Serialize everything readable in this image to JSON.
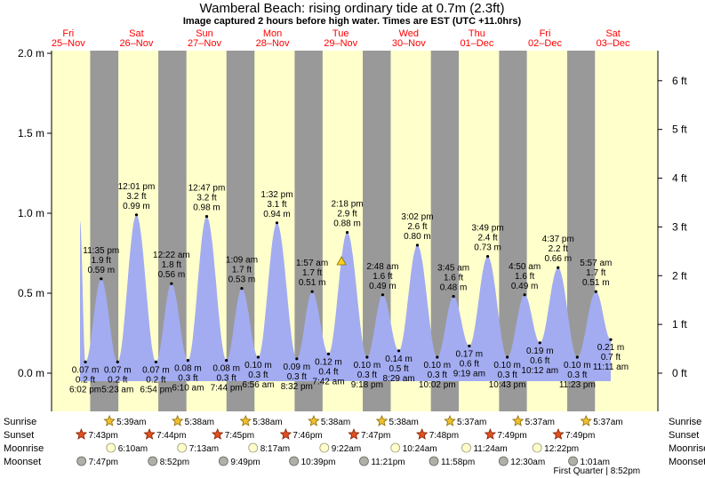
{
  "title": "Wamberal Beach: rising  ordinary tide at 0.7m (2.3ft)",
  "subtitle": "Image captured 2 hours before high water. Times are EST (UTC +11.0hrs)",
  "colors": {
    "day_fill": "#ffffcc",
    "night_fill": "#999999",
    "tide_fill": "#a3acf0",
    "day_label": "#ff0000",
    "sun": "#f0c030",
    "sunset_star": "#e05020",
    "moon": "#ffffcc",
    "moonset": "#b0b0a8",
    "current_marker": "#ffd020"
  },
  "chart_data": {
    "type": "area",
    "title": "Wamberal Beach: rising  ordinary tide at 0.7m (2.3ft)",
    "ylabel": "",
    "ylim": [
      -0.09,
      2.0
    ],
    "left_axis_ticks": [
      "0.0 m",
      "0.5 m",
      "1.0 m",
      "1.5 m",
      "2.0 m"
    ],
    "left_axis_values": [
      0.0,
      0.5,
      1.0,
      1.5,
      2.0
    ],
    "right_axis_ticks": [
      "0 ft",
      "1 ft",
      "2 ft",
      "3 ft",
      "4 ft",
      "5 ft",
      "6 ft"
    ],
    "right_axis_values": [
      0,
      1,
      2,
      3,
      4,
      5,
      6
    ],
    "days": [
      {
        "dow": "Fri",
        "date": "25–Nov"
      },
      {
        "dow": "Sat",
        "date": "26–Nov"
      },
      {
        "dow": "Sun",
        "date": "27–Nov"
      },
      {
        "dow": "Mon",
        "date": "28–Nov"
      },
      {
        "dow": "Tue",
        "date": "29–Nov"
      },
      {
        "dow": "Wed",
        "date": "30–Nov"
      },
      {
        "dow": "Thu",
        "date": "01–Dec"
      },
      {
        "dow": "Fri",
        "date": "02–Dec"
      },
      {
        "dow": "Sat",
        "date": "03–Dec"
      }
    ],
    "tides": [
      {
        "kind": "low",
        "time": "6:02 pm",
        "ft": "0.2 ft",
        "m": "0.07 m",
        "value": 0.07,
        "day": 0,
        "hour": 18.03
      },
      {
        "kind": "high",
        "time": "11:35 pm",
        "ft": "1.9 ft",
        "m": "0.59 m",
        "value": 0.59,
        "day": 0,
        "hour": 23.58
      },
      {
        "kind": "low",
        "time": "5:23 am",
        "ft": "0.2 ft",
        "m": "0.07 m",
        "value": 0.07,
        "day": 1,
        "hour": 5.38
      },
      {
        "kind": "high",
        "time": "12:01 pm",
        "ft": "3.2 ft",
        "m": "0.99 m",
        "value": 0.99,
        "day": 1,
        "hour": 12.02
      },
      {
        "kind": "low",
        "time": "6:54 pm",
        "ft": "0.2 ft",
        "m": "0.07 m",
        "value": 0.07,
        "day": 1,
        "hour": 18.9
      },
      {
        "kind": "high",
        "time": "12:22 am",
        "ft": "1.8 ft",
        "m": "0.56 m",
        "value": 0.56,
        "day": 2,
        "hour": 0.37
      },
      {
        "kind": "low",
        "time": "6:10 am",
        "ft": "0.3 ft",
        "m": "0.08 m",
        "value": 0.08,
        "day": 2,
        "hour": 6.17
      },
      {
        "kind": "high",
        "time": "12:47 pm",
        "ft": "3.2 ft",
        "m": "0.98 m",
        "value": 0.98,
        "day": 2,
        "hour": 12.78
      },
      {
        "kind": "low",
        "time": "7:44 pm",
        "ft": "0.3 ft",
        "m": "0.08 m",
        "value": 0.08,
        "day": 2,
        "hour": 19.73
      },
      {
        "kind": "high",
        "time": "1:09 am",
        "ft": "1.7 ft",
        "m": "0.53 m",
        "value": 0.53,
        "day": 3,
        "hour": 1.15
      },
      {
        "kind": "low",
        "time": "6:56 am",
        "ft": "0.3 ft",
        "m": "0.10 m",
        "value": 0.1,
        "day": 3,
        "hour": 6.93
      },
      {
        "kind": "high",
        "time": "1:32 pm",
        "ft": "3.1 ft",
        "m": "0.94 m",
        "value": 0.94,
        "day": 3,
        "hour": 13.53
      },
      {
        "kind": "low",
        "time": "8:32 pm",
        "ft": "0.3 ft",
        "m": "0.09 m",
        "value": 0.09,
        "day": 3,
        "hour": 20.53
      },
      {
        "kind": "high",
        "time": "1:57 am",
        "ft": "1.7 ft",
        "m": "0.51 m",
        "value": 0.51,
        "day": 4,
        "hour": 1.95
      },
      {
        "kind": "low",
        "time": "7:42 am",
        "ft": "0.4 ft",
        "m": "0.12 m",
        "value": 0.12,
        "day": 4,
        "hour": 7.7
      },
      {
        "kind": "high",
        "time": "2:18 pm",
        "ft": "2.9 ft",
        "m": "0.88 m",
        "value": 0.88,
        "day": 4,
        "hour": 14.3
      },
      {
        "kind": "low",
        "time": "9:18 pm",
        "ft": "0.3 ft",
        "m": "0.10 m",
        "value": 0.1,
        "day": 4,
        "hour": 21.3
      },
      {
        "kind": "high",
        "time": "2:48 am",
        "ft": "1.6 ft",
        "m": "0.49 m",
        "value": 0.49,
        "day": 5,
        "hour": 2.8
      },
      {
        "kind": "low",
        "time": "8:29 am",
        "ft": "0.5 ft",
        "m": "0.14 m",
        "value": 0.14,
        "day": 5,
        "hour": 8.48
      },
      {
        "kind": "high",
        "time": "3:02 pm",
        "ft": "2.6 ft",
        "m": "0.80 m",
        "value": 0.8,
        "day": 5,
        "hour": 15.03
      },
      {
        "kind": "low",
        "time": "10:02 pm",
        "ft": "0.3 ft",
        "m": "0.10 m",
        "value": 0.1,
        "day": 5,
        "hour": 22.03
      },
      {
        "kind": "high",
        "time": "3:45 am",
        "ft": "1.6 ft",
        "m": "0.48 m",
        "value": 0.48,
        "day": 6,
        "hour": 3.75
      },
      {
        "kind": "low",
        "time": "9:19 am",
        "ft": "0.6 ft",
        "m": "0.17 m",
        "value": 0.17,
        "day": 6,
        "hour": 9.32
      },
      {
        "kind": "high",
        "time": "3:49 pm",
        "ft": "2.4 ft",
        "m": "0.73 m",
        "value": 0.73,
        "day": 6,
        "hour": 15.82
      },
      {
        "kind": "low",
        "time": "10:43 pm",
        "ft": "0.3 ft",
        "m": "0.10 m",
        "value": 0.1,
        "day": 6,
        "hour": 22.72
      },
      {
        "kind": "high",
        "time": "4:50 am",
        "ft": "1.6 ft",
        "m": "0.49 m",
        "value": 0.49,
        "day": 7,
        "hour": 4.83
      },
      {
        "kind": "low",
        "time": "10:12 am",
        "ft": "0.6 ft",
        "m": "0.19 m",
        "value": 0.19,
        "day": 7,
        "hour": 10.2
      },
      {
        "kind": "high",
        "time": "4:37 pm",
        "ft": "2.2 ft",
        "m": "0.66 m",
        "value": 0.66,
        "day": 7,
        "hour": 16.62
      },
      {
        "kind": "low",
        "time": "11:23 pm",
        "ft": "0.3 ft",
        "m": "0.10 m",
        "value": 0.1,
        "day": 7,
        "hour": 23.38
      },
      {
        "kind": "high",
        "time": "5:57 am",
        "ft": "1.7 ft",
        "m": "0.51 m",
        "value": 0.51,
        "day": 8,
        "hour": 5.95
      },
      {
        "kind": "low",
        "time": "11:11 am",
        "ft": "0.7 ft",
        "m": "0.21 m",
        "value": 0.21,
        "day": 8,
        "hour": 11.18
      }
    ],
    "current": {
      "value": 0.7,
      "day": 4,
      "hour": 12.3
    },
    "sunrise": [
      {
        "day": 1,
        "hour": 5.65,
        "label": "5:39am"
      },
      {
        "day": 2,
        "hour": 5.63,
        "label": "5:38am"
      },
      {
        "day": 3,
        "hour": 5.63,
        "label": "5:38am"
      },
      {
        "day": 4,
        "hour": 5.63,
        "label": "5:38am"
      },
      {
        "day": 5,
        "hour": 5.63,
        "label": "5:38am"
      },
      {
        "day": 6,
        "hour": 5.62,
        "label": "5:37am"
      },
      {
        "day": 7,
        "hour": 5.62,
        "label": "5:37am"
      },
      {
        "day": 8,
        "hour": 5.62,
        "label": "5:37am"
      }
    ],
    "sunset": [
      {
        "day": 0,
        "hour": 19.72,
        "label": "7:43pm"
      },
      {
        "day": 1,
        "hour": 19.73,
        "label": "7:44pm"
      },
      {
        "day": 2,
        "hour": 19.75,
        "label": "7:45pm"
      },
      {
        "day": 3,
        "hour": 19.77,
        "label": "7:46pm"
      },
      {
        "day": 4,
        "hour": 19.78,
        "label": "7:47pm"
      },
      {
        "day": 5,
        "hour": 19.8,
        "label": "7:48pm"
      },
      {
        "day": 6,
        "hour": 19.82,
        "label": "7:49pm"
      },
      {
        "day": 7,
        "hour": 19.82,
        "label": "7:49pm"
      }
    ],
    "moonrise": [
      {
        "day": 1,
        "hour": 6.17,
        "label": "6:10am"
      },
      {
        "day": 2,
        "hour": 7.22,
        "label": "7:13am"
      },
      {
        "day": 3,
        "hour": 8.28,
        "label": "8:17am"
      },
      {
        "day": 4,
        "hour": 9.37,
        "label": "9:22am"
      },
      {
        "day": 5,
        "hour": 10.4,
        "label": "10:24am"
      },
      {
        "day": 6,
        "hour": 11.4,
        "label": "11:24am"
      },
      {
        "day": 7,
        "hour": 12.37,
        "label": "12:22pm"
      }
    ],
    "moonset": [
      {
        "day": 0,
        "hour": 19.78,
        "label": "7:47pm"
      },
      {
        "day": 1,
        "hour": 20.87,
        "label": "8:52pm"
      },
      {
        "day": 2,
        "hour": 21.82,
        "label": "9:49pm"
      },
      {
        "day": 3,
        "hour": 22.65,
        "label": "10:39pm"
      },
      {
        "day": 4,
        "hour": 23.35,
        "label": "11:21pm"
      },
      {
        "day": 5,
        "hour": 23.97,
        "label": "11:58pm"
      },
      {
        "day": 7,
        "hour": 0.5,
        "label": "12:30am"
      },
      {
        "day": 8,
        "hour": 1.02,
        "label": "1:01am"
      }
    ],
    "moon_phase": {
      "day": 7,
      "hour": 20.87,
      "label": "First Quarter | 8:52pm"
    },
    "row_labels": [
      "Sunrise",
      "Sunset",
      "Moonrise",
      "Moonset"
    ]
  }
}
